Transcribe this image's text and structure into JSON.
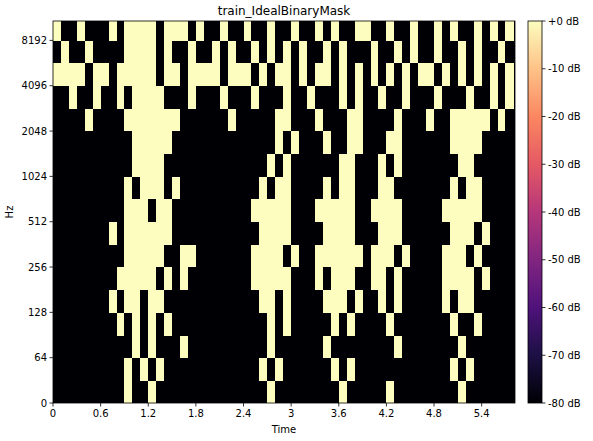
{
  "chart_data": {
    "type": "heatmap",
    "title": "train_IdealBinaryMask",
    "x_label": "Time",
    "y_label": "Hz",
    "log": "y",
    "xlim": [
      0,
      5.82
    ],
    "ylim": [
      0,
      11025
    ],
    "xticks": [
      0,
      0.6,
      1.2,
      1.8,
      2.4,
      3,
      3.6,
      4.2,
      4.8,
      5.4
    ],
    "yticks": [
      0,
      64,
      128,
      256,
      512,
      1024,
      2048,
      4096,
      8192
    ],
    "x_edges": [
      0,
      0.1,
      0.2,
      0.3,
      0.4,
      0.5,
      0.6,
      0.7,
      0.8,
      0.9,
      1,
      1.1,
      1.2,
      1.3,
      1.4,
      1.5,
      1.6,
      1.7,
      1.8,
      1.9,
      2,
      2.1,
      2.2,
      2.3,
      2.4,
      2.5,
      2.6,
      2.7,
      2.8,
      2.9,
      3,
      3.1,
      3.2,
      3.3,
      3.4,
      3.5,
      3.6,
      3.7,
      3.8,
      3.9,
      4,
      4.1,
      4.2,
      4.3,
      4.4,
      4.5,
      4.6,
      4.7,
      4.8,
      4.9,
      5,
      5.1,
      5.2,
      5.3,
      5.4,
      5.5,
      5.6,
      5.7,
      5.8
    ],
    "y_edges": [
      0,
      32,
      64,
      90,
      128,
      181,
      256,
      362,
      512,
      724,
      1024,
      1448,
      2048,
      2896,
      4096,
      5793,
      8192,
      11025
    ],
    "color_range": [
      -80,
      0
    ],
    "color_ticks": [
      {
        "value": 0,
        "label": "+0 dB"
      },
      {
        "value": -10,
        "label": "-10 dB"
      },
      {
        "value": -20,
        "label": "-20 dB"
      },
      {
        "value": -30,
        "label": "-30 dB"
      },
      {
        "value": -40,
        "label": "-40 dB"
      },
      {
        "value": -50,
        "label": "-50 dB"
      },
      {
        "value": -60,
        "label": "-60 dB"
      },
      {
        "value": -70,
        "label": "-70 dB"
      },
      {
        "value": -80,
        "label": "-80 dB"
      }
    ],
    "values": [
      [
        -80,
        -80,
        -80,
        -80,
        -80,
        -80,
        -80,
        -80,
        -80,
        0,
        -80,
        -80,
        0,
        -80,
        -80,
        -80,
        -80,
        -80,
        -80,
        -80,
        -80,
        -80,
        -80,
        -80,
        -80,
        -80,
        -80,
        0,
        -80,
        -80,
        -80,
        -80,
        -80,
        -80,
        -80,
        -80,
        0,
        -80,
        -80,
        -80,
        -80,
        -80,
        0,
        -80,
        -80,
        -80,
        -80,
        -80,
        -80,
        -80,
        -80,
        0,
        -80,
        -80,
        -80,
        -80,
        -80,
        -80
      ],
      [
        -80,
        -80,
        -80,
        -80,
        -80,
        -80,
        -80,
        -80,
        -80,
        0,
        -80,
        0,
        -80,
        0,
        -80,
        -80,
        -80,
        -80,
        -80,
        -80,
        -80,
        -80,
        -80,
        -80,
        -80,
        -80,
        0,
        -80,
        0,
        -80,
        -80,
        -80,
        -80,
        -80,
        -80,
        0,
        -80,
        0,
        -80,
        -80,
        -80,
        -80,
        -80,
        -80,
        -80,
        -80,
        -80,
        -80,
        -80,
        -80,
        0,
        -80,
        0,
        -80,
        -80,
        -80,
        -80,
        -80
      ],
      [
        -80,
        -80,
        -80,
        -80,
        -80,
        -80,
        -80,
        -80,
        -80,
        -80,
        0,
        -80,
        0,
        -80,
        -80,
        -80,
        0,
        -80,
        -80,
        -80,
        -80,
        -80,
        -80,
        -80,
        -80,
        -80,
        -80,
        0,
        -80,
        -80,
        -80,
        -80,
        -80,
        -80,
        0,
        -80,
        -80,
        -80,
        -80,
        -80,
        -80,
        -80,
        -80,
        0,
        -80,
        -80,
        -80,
        -80,
        -80,
        -80,
        -80,
        0,
        -80,
        -80,
        -80,
        -80,
        -80,
        -80
      ],
      [
        -80,
        -80,
        -80,
        -80,
        -80,
        -80,
        -80,
        -80,
        0,
        -80,
        0,
        -80,
        0,
        -80,
        0,
        -80,
        -80,
        -80,
        -80,
        -80,
        -80,
        -80,
        -80,
        -80,
        -80,
        -80,
        -80,
        0,
        -80,
        0,
        -80,
        -80,
        -80,
        -80,
        -80,
        0,
        -80,
        0,
        -80,
        -80,
        -80,
        -80,
        0,
        -80,
        -80,
        -80,
        -80,
        -80,
        -80,
        -80,
        0,
        -80,
        -80,
        0,
        -80,
        -80,
        -80,
        -80
      ],
      [
        -80,
        -80,
        -80,
        -80,
        -80,
        -80,
        -80,
        0,
        -80,
        0,
        0,
        -80,
        0,
        0,
        -80,
        -80,
        -80,
        -80,
        -80,
        -80,
        -80,
        -80,
        -80,
        -80,
        -80,
        -80,
        0,
        0,
        -80,
        0,
        -80,
        -80,
        -80,
        -80,
        0,
        0,
        0,
        -80,
        0,
        -80,
        -80,
        0,
        -80,
        0,
        -80,
        -80,
        -80,
        -80,
        -80,
        0,
        -80,
        0,
        0,
        -80,
        -80,
        -80,
        -80,
        -80
      ],
      [
        -80,
        -80,
        -80,
        -80,
        -80,
        -80,
        -80,
        -80,
        0,
        0,
        0,
        0,
        0,
        -80,
        0,
        -80,
        0,
        -80,
        -80,
        -80,
        -80,
        -80,
        -80,
        -80,
        -80,
        0,
        0,
        0,
        0,
        0,
        -80,
        -80,
        -80,
        0,
        -80,
        0,
        0,
        0,
        -80,
        -80,
        0,
        0,
        -80,
        0,
        -80,
        -80,
        -80,
        -80,
        -80,
        0,
        0,
        0,
        0,
        -80,
        0,
        -80,
        -80,
        -80
      ],
      [
        -80,
        -80,
        -80,
        -80,
        -80,
        -80,
        -80,
        -80,
        -80,
        0,
        0,
        0,
        0,
        0,
        -80,
        -80,
        0,
        0,
        -80,
        -80,
        -80,
        -80,
        -80,
        -80,
        -80,
        0,
        0,
        0,
        0,
        -80,
        0,
        -80,
        -80,
        0,
        0,
        0,
        0,
        0,
        0,
        -80,
        0,
        0,
        0,
        -80,
        0,
        -80,
        -80,
        -80,
        -80,
        0,
        0,
        0,
        -80,
        0,
        -80,
        -80,
        -80,
        -80
      ],
      [
        -80,
        -80,
        -80,
        -80,
        -80,
        -80,
        -80,
        0,
        -80,
        0,
        0,
        0,
        0,
        0,
        0,
        -80,
        -80,
        -80,
        -80,
        -80,
        -80,
        -80,
        -80,
        -80,
        -80,
        -80,
        0,
        0,
        0,
        0,
        -80,
        -80,
        -80,
        -80,
        0,
        0,
        0,
        0,
        -80,
        -80,
        -80,
        0,
        0,
        0,
        -80,
        -80,
        -80,
        -80,
        -80,
        -80,
        0,
        0,
        0,
        -80,
        0,
        -80,
        -80,
        -80
      ],
      [
        -80,
        -80,
        -80,
        -80,
        -80,
        -80,
        -80,
        -80,
        -80,
        0,
        0,
        0,
        -80,
        0,
        0,
        -80,
        -80,
        -80,
        -80,
        -80,
        -80,
        -80,
        -80,
        -80,
        -80,
        0,
        0,
        0,
        0,
        0,
        -80,
        -80,
        -80,
        0,
        0,
        0,
        0,
        0,
        -80,
        -80,
        0,
        0,
        0,
        0,
        -80,
        -80,
        -80,
        -80,
        -80,
        0,
        0,
        0,
        0,
        0,
        -80,
        -80,
        -80,
        -80
      ],
      [
        -80,
        -80,
        -80,
        -80,
        -80,
        -80,
        -80,
        -80,
        -80,
        0,
        -80,
        0,
        0,
        0,
        -80,
        0,
        -80,
        -80,
        -80,
        -80,
        -80,
        -80,
        -80,
        -80,
        -80,
        -80,
        0,
        -80,
        0,
        0,
        -80,
        -80,
        -80,
        -80,
        0,
        -80,
        0,
        0,
        -80,
        -80,
        -80,
        0,
        0,
        -80,
        -80,
        -80,
        -80,
        -80,
        -80,
        -80,
        0,
        -80,
        0,
        0,
        -80,
        -80,
        -80,
        -80
      ],
      [
        -80,
        -80,
        -80,
        -80,
        -80,
        -80,
        -80,
        -80,
        -80,
        -80,
        0,
        0,
        0,
        0,
        -80,
        -80,
        -80,
        -80,
        -80,
        -80,
        -80,
        -80,
        -80,
        -80,
        -80,
        -80,
        -80,
        0,
        -80,
        0,
        -80,
        -80,
        -80,
        -80,
        -80,
        -80,
        0,
        0,
        -80,
        -80,
        -80,
        0,
        -80,
        0,
        -80,
        -80,
        -80,
        -80,
        -80,
        -80,
        -80,
        0,
        0,
        -80,
        -80,
        -80,
        -80,
        -80
      ],
      [
        -80,
        -80,
        -80,
        -80,
        -80,
        -80,
        -80,
        -80,
        -80,
        -80,
        0,
        0,
        0,
        0,
        0,
        -80,
        -80,
        -80,
        -80,
        -80,
        -80,
        -80,
        -80,
        -80,
        -80,
        -80,
        -80,
        -80,
        0,
        -80,
        0,
        -80,
        -80,
        -80,
        0,
        -80,
        -80,
        0,
        0,
        -80,
        -80,
        -80,
        0,
        0,
        -80,
        -80,
        -80,
        -80,
        -80,
        -80,
        0,
        0,
        0,
        0,
        -80,
        -80,
        -80,
        -80
      ],
      [
        -80,
        -80,
        -80,
        -80,
        0,
        -80,
        -80,
        -80,
        -80,
        0,
        0,
        0,
        0,
        0,
        0,
        0,
        -80,
        -80,
        -80,
        -80,
        -80,
        -80,
        0,
        -80,
        -80,
        -80,
        -80,
        -80,
        0,
        0,
        -80,
        -80,
        -80,
        0,
        -80,
        -80,
        -80,
        0,
        0,
        -80,
        -80,
        -80,
        -80,
        0,
        -80,
        -80,
        -80,
        0,
        -80,
        -80,
        0,
        0,
        0,
        0,
        0,
        -80,
        0,
        -80
      ],
      [
        -80,
        -80,
        0,
        -80,
        -80,
        0,
        -80,
        -80,
        0,
        -80,
        0,
        0,
        0,
        0,
        -80,
        -80,
        -80,
        0,
        -80,
        -80,
        -80,
        0,
        -80,
        -80,
        -80,
        0,
        -80,
        -80,
        -80,
        0,
        -80,
        -80,
        0,
        -80,
        -80,
        -80,
        0,
        -80,
        0,
        -80,
        -80,
        0,
        -80,
        -80,
        0,
        -80,
        -80,
        -80,
        0,
        -80,
        -80,
        -80,
        0,
        -80,
        -80,
        0,
        -80,
        0
      ],
      [
        0,
        0,
        0,
        0,
        -80,
        0,
        0,
        -80,
        0,
        0,
        0,
        0,
        0,
        -80,
        0,
        0,
        -80,
        0,
        0,
        0,
        0,
        -80,
        0,
        0,
        0,
        -80,
        0,
        -80,
        0,
        0,
        -80,
        0,
        -80,
        0,
        0,
        -80,
        0,
        -80,
        0,
        -80,
        0,
        -80,
        0,
        -80,
        0,
        -80,
        0,
        0,
        -80,
        0,
        -80,
        0,
        -80,
        0,
        -80,
        0,
        -80,
        0
      ],
      [
        -80,
        0,
        -80,
        -80,
        0,
        -80,
        -80,
        -80,
        -80,
        0,
        0,
        0,
        0,
        -80,
        0,
        -80,
        -80,
        0,
        -80,
        -80,
        0,
        -80,
        0,
        -80,
        -80,
        0,
        -80,
        0,
        -80,
        0,
        -80,
        0,
        -80,
        -80,
        0,
        -80,
        0,
        -80,
        -80,
        -80,
        0,
        -80,
        -80,
        0,
        -80,
        0,
        -80,
        -80,
        0,
        -80,
        -80,
        0,
        -80,
        0,
        -80,
        -80,
        0,
        -80
      ],
      [
        0,
        -80,
        -80,
        0,
        -80,
        -80,
        -80,
        0,
        -80,
        0,
        0,
        0,
        0,
        -80,
        0,
        0,
        0,
        -80,
        0,
        -80,
        -80,
        0,
        -80,
        -80,
        0,
        -80,
        -80,
        0,
        -80,
        -80,
        0,
        -80,
        -80,
        0,
        -80,
        0,
        -80,
        -80,
        0,
        0,
        -80,
        -80,
        0,
        -80,
        -80,
        0,
        -80,
        -80,
        0,
        -80,
        0,
        -80,
        -80,
        0,
        -80,
        0,
        -80,
        0
      ]
    ]
  }
}
